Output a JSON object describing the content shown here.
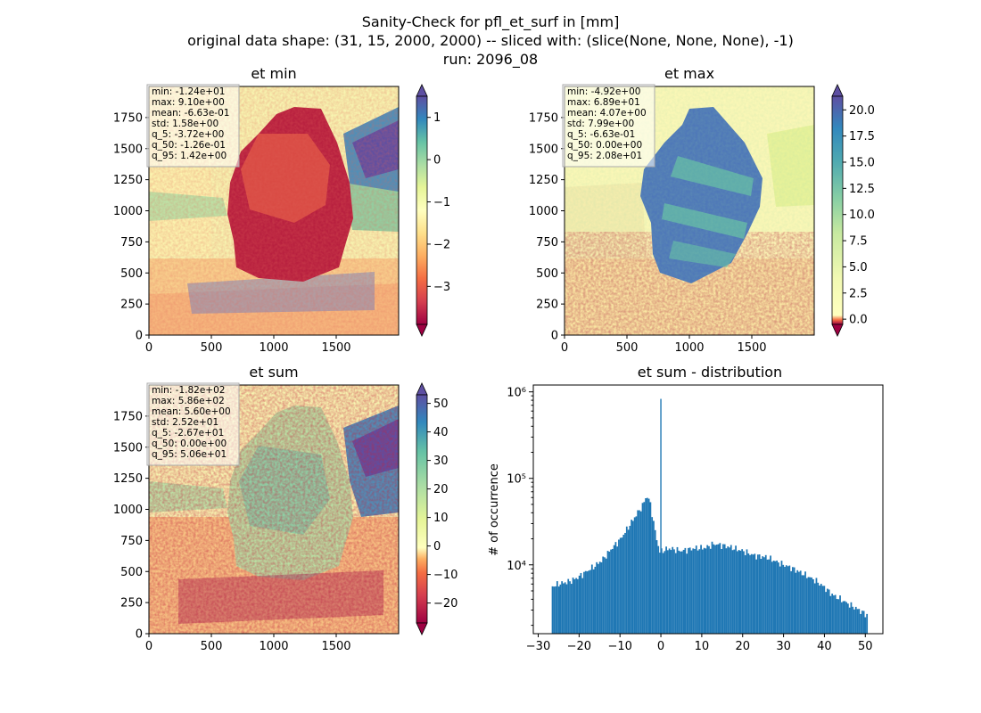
{
  "figure": {
    "title_lines": [
      "Sanity-Check for pfl_et_surf in [mm]",
      "original data shape: (31, 15, 2000, 2000) -- sliced with: (slice(None, None, None), -1)",
      "run: 2096_08"
    ]
  },
  "chart_data": [
    {
      "type": "heatmap",
      "title": "et min",
      "x_ticks": [
        "0",
        "500",
        "1000",
        "1500"
      ],
      "y_ticks": [
        "0",
        "250",
        "500",
        "750",
        "1000",
        "1250",
        "1500",
        "1750"
      ],
      "xlim": [
        0,
        2000
      ],
      "ylim": [
        0,
        2000
      ],
      "colormap": "Spectral",
      "colorbar": {
        "range": [
          -3.9,
          1.5
        ],
        "ticks": [
          "1",
          "0",
          "−1",
          "−2",
          "−3"
        ],
        "tick_values": [
          1,
          0,
          -1,
          -2,
          -3
        ],
        "extend": "both"
      },
      "stats": [
        "min: -1.24e+01",
        "max: 9.10e+00",
        "mean: -6.63e-01",
        "std: 1.58e+00",
        "q_5: -3.72e+00",
        "q_50: -1.26e-01",
        "q_95: 1.42e+00"
      ]
    },
    {
      "type": "heatmap",
      "title": "et max",
      "x_ticks": [
        "0",
        "500",
        "1000",
        "1500"
      ],
      "y_ticks": [
        "0",
        "250",
        "500",
        "750",
        "1000",
        "1250",
        "1500",
        "1750"
      ],
      "xlim": [
        0,
        2000
      ],
      "ylim": [
        0,
        2000
      ],
      "colormap": "Spectral",
      "colorbar": {
        "range": [
          -0.5,
          21.3
        ],
        "ticks": [
          "20.0",
          "17.5",
          "15.0",
          "12.5",
          "10.0",
          "7.5",
          "5.0",
          "2.5",
          "0.0"
        ],
        "tick_values": [
          20,
          17.5,
          15,
          12.5,
          10,
          7.5,
          5,
          2.5,
          0
        ],
        "extend": "both"
      },
      "stats": [
        "min: -4.92e+00",
        "max: 6.89e+01",
        "mean: 4.07e+00",
        "std: 7.99e+00",
        "q_5: -6.63e-01",
        "q_50: 0.00e+00",
        "q_95: 2.08e+01"
      ]
    },
    {
      "type": "heatmap",
      "title": "et sum",
      "x_ticks": [
        "0",
        "500",
        "1000",
        "1500"
      ],
      "y_ticks": [
        "0",
        "250",
        "500",
        "750",
        "1000",
        "1250",
        "1500",
        "1750"
      ],
      "xlim": [
        0,
        2000
      ],
      "ylim": [
        0,
        2000
      ],
      "colormap": "Spectral",
      "colorbar": {
        "range": [
          -27,
          53
        ],
        "ticks": [
          "50",
          "40",
          "30",
          "20",
          "10",
          "0",
          "−10",
          "−20"
        ],
        "tick_values": [
          50,
          40,
          30,
          20,
          10,
          0,
          -10,
          -20
        ],
        "extend": "both"
      },
      "stats": [
        "min: -1.82e+02",
        "max: 5.86e+02",
        "mean: 5.60e+00",
        "std: 2.52e+01",
        "q_5: -2.67e+01",
        "q_50: 0.00e+00",
        "q_95: 5.06e+01"
      ]
    },
    {
      "type": "bar",
      "title": "et sum - distribution",
      "ylabel": "# of occurrence",
      "xlabel": "",
      "yscale": "log",
      "xlim": [
        -31.2,
        54.3
      ],
      "ylim": [
        1600,
        1200000
      ],
      "x_ticks": [
        "−30",
        "−20",
        "−10",
        "0",
        "10",
        "20",
        "30",
        "40",
        "50"
      ],
      "x_tick_values": [
        -30,
        -20,
        -10,
        0,
        10,
        20,
        30,
        40,
        50
      ],
      "y_ticks": [
        "10⁴",
        "10⁵",
        "10⁶"
      ],
      "y_tick_values": [
        10000,
        100000,
        1000000
      ],
      "color": "#1f77b4",
      "bin_range": [
        -26.7,
        50.6
      ],
      "profile": [
        [
          -26.7,
          5600
        ],
        [
          -25,
          6000
        ],
        [
          -22,
          6500
        ],
        [
          -20,
          7300
        ],
        [
          -18,
          8500
        ],
        [
          -16,
          9800
        ],
        [
          -14,
          11800
        ],
        [
          -12,
          15500
        ],
        [
          -10,
          19500
        ],
        [
          -8,
          27000
        ],
        [
          -6,
          38000
        ],
        [
          -4.5,
          48000
        ],
        [
          -3.5,
          63000
        ],
        [
          -2.7,
          55000
        ],
        [
          -2,
          36000
        ],
        [
          -1.3,
          23000
        ],
        [
          -0.6,
          16500
        ],
        [
          -0.2,
          14000
        ],
        [
          0.3,
          14500
        ],
        [
          2,
          15500
        ],
        [
          5,
          14500
        ],
        [
          8,
          15500
        ],
        [
          11,
          15800
        ],
        [
          13,
          17500
        ],
        [
          15,
          16800
        ],
        [
          17,
          16000
        ],
        [
          20,
          14500
        ],
        [
          23,
          12800
        ],
        [
          26,
          12200
        ],
        [
          29,
          10500
        ],
        [
          32,
          9200
        ],
        [
          35,
          7800
        ],
        [
          38,
          6500
        ],
        [
          40,
          5500
        ],
        [
          42,
          4500
        ],
        [
          44,
          4000
        ],
        [
          46,
          3500
        ],
        [
          48,
          3100
        ],
        [
          50.6,
          2600
        ]
      ],
      "peak": {
        "x": 0.0,
        "count": 830000
      }
    }
  ]
}
